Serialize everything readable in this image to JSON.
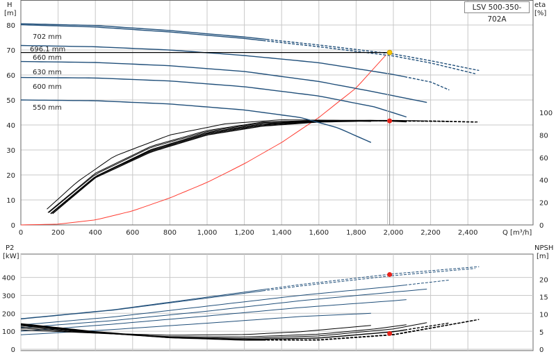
{
  "model_label": "LSV 500-350-702A",
  "colors": {
    "head_curve": "#1f4e79",
    "efficiency_curve": "#000000",
    "system_curve": "#ff3b30",
    "duty_point_head": "#f5c400",
    "duty_point": "#e8231a",
    "grid": "#c8c8c8",
    "vertical_marker": "#8a8a8a"
  },
  "chart_data": [
    {
      "type": "line",
      "title": "",
      "xlabel": "Q [m³/h]",
      "x_tick_labels": [
        "0",
        "200",
        "400",
        "600",
        "800",
        "1,000",
        "1,200",
        "1,400",
        "1,600",
        "1,800",
        "2,000",
        "2,200",
        "2,400"
      ],
      "x_ticks": [
        0,
        200,
        400,
        600,
        800,
        1000,
        1200,
        1400,
        1600,
        1800,
        2000,
        2200,
        2400
      ],
      "xlim": [
        0,
        2750
      ],
      "ylabel_left": [
        "H",
        "[m]"
      ],
      "ylim_left": [
        0,
        90
      ],
      "y_ticks_left": [
        0,
        10,
        20,
        30,
        40,
        50,
        60,
        70,
        80
      ],
      "ylabel_right": [
        "eta",
        "[%]"
      ],
      "ylim_right": [
        0,
        200
      ],
      "y_ticks_right": [
        0,
        20,
        40,
        60,
        80,
        100
      ],
      "grid": true,
      "head_curves": [
        {
          "name": "702 mm",
          "points": [
            [
              0,
              80.5
            ],
            [
              400,
              79.8
            ],
            [
              800,
              77.8
            ],
            [
              1200,
              75.2
            ],
            [
              1600,
              72
            ],
            [
              2000,
              68.4
            ],
            [
              2200,
              65.7
            ],
            [
              2460,
              61.8
            ]
          ],
          "solid_until": 1320
        },
        {
          "name": "696.1 mm",
          "points": [
            [
              0,
              80.1
            ],
            [
              400,
              79.2
            ],
            [
              800,
              77.2
            ],
            [
              1200,
              74.6
            ],
            [
              1600,
              71.3
            ],
            [
              2000,
              67.6
            ],
            [
              2200,
              64.8
            ],
            [
              2440,
              60.5
            ]
          ],
          "solid_until": 1300
        },
        {
          "name": "660 mm",
          "points": [
            [
              0,
              71.8
            ],
            [
              400,
              71.3
            ],
            [
              800,
              70
            ],
            [
              1200,
              67.8
            ],
            [
              1600,
              64.9
            ],
            [
              2000,
              60.2
            ],
            [
              2200,
              57.2
            ],
            [
              2300,
              54
            ]
          ],
          "solid_until": 2060
        },
        {
          "name": "630 mm",
          "points": [
            [
              0,
              69
            ],
            [
              1000,
              69
            ],
            [
              1600,
              69
            ],
            [
              1980,
              69
            ]
          ],
          "solid_until": 1980
        },
        {
          "name": "630 mm curve",
          "points": [
            [
              0,
              65.4
            ],
            [
              400,
              65
            ],
            [
              800,
              63.7
            ],
            [
              1200,
              61.4
            ],
            [
              1600,
              57.4
            ],
            [
              1900,
              53.2
            ],
            [
              2180,
              49
            ]
          ],
          "solid_until": 2180
        },
        {
          "name": "600 mm",
          "points": [
            [
              0,
              59
            ],
            [
              400,
              58.8
            ],
            [
              800,
              57.6
            ],
            [
              1200,
              55.3
            ],
            [
              1600,
              51.6
            ],
            [
              1900,
              47.2
            ],
            [
              2070,
              43.2
            ]
          ],
          "solid_until": 2070
        },
        {
          "name": "550 mm",
          "points": [
            [
              0,
              50
            ],
            [
              400,
              49.7
            ],
            [
              800,
              48.4
            ],
            [
              1200,
              46
            ],
            [
              1500,
              43
            ],
            [
              1700,
              38.9
            ],
            [
              1880,
              33
            ]
          ],
          "solid_until": 1880
        }
      ],
      "efficiency_curves": [
        {
          "name": "702 mm",
          "points": [
            [
              170,
              10
            ],
            [
              400,
              42
            ],
            [
              700,
              65
            ],
            [
              1000,
              80
            ],
            [
              1300,
              88
            ],
            [
              1600,
              91.5
            ],
            [
              1900,
              92.5
            ],
            [
              2200,
              92.5
            ],
            [
              2460,
              91.5
            ]
          ],
          "solid_until": 1900
        },
        {
          "name": "696.1 mm",
          "points": [
            [
              160,
              10
            ],
            [
              400,
              43
            ],
            [
              700,
              66
            ],
            [
              1000,
              81
            ],
            [
              1300,
              89
            ],
            [
              1600,
              92
            ],
            [
              1900,
              92.7
            ],
            [
              2200,
              92.3
            ],
            [
              2440,
              91.4
            ]
          ],
          "solid_until": 1900
        },
        {
          "name": "660 mm",
          "points": [
            [
              160,
              10
            ],
            [
              400,
              43
            ],
            [
              700,
              67
            ],
            [
              1000,
              82
            ],
            [
              1300,
              90
            ],
            [
              1600,
              92.5
            ],
            [
              1900,
              92.5
            ],
            [
              2300,
              92
            ]
          ],
          "solid_until": 2060
        },
        {
          "name": "630 mm",
          "points": [
            [
              150,
              11
            ],
            [
              400,
              45
            ],
            [
              700,
              69
            ],
            [
              1000,
              83
            ],
            [
              1300,
              91
            ],
            [
              1600,
              92.8
            ],
            [
              2000,
              93
            ],
            [
              2180,
              92.5
            ]
          ],
          "solid_until": 2180
        },
        {
          "name": "600 mm",
          "points": [
            [
              145,
              11
            ],
            [
              400,
              46
            ],
            [
              700,
              70
            ],
            [
              1000,
              84
            ],
            [
              1300,
              91.5
            ],
            [
              1600,
              93
            ],
            [
              1900,
              93
            ],
            [
              2070,
              91.5
            ]
          ],
          "solid_until": 2070
        },
        {
          "name": "550 mm",
          "points": [
            [
              140,
              14
            ],
            [
              300,
              38
            ],
            [
              500,
              61
            ],
            [
              800,
              80
            ],
            [
              1100,
              90
            ],
            [
              1400,
              93.5
            ],
            [
              1700,
              93
            ],
            [
              1880,
              92
            ]
          ],
          "solid_until": 1880
        }
      ],
      "system_curve": {
        "points": [
          [
            0,
            0
          ],
          [
            200,
            0.3
          ],
          [
            400,
            2
          ],
          [
            600,
            5.6
          ],
          [
            800,
            10.8
          ],
          [
            1000,
            17
          ],
          [
            1200,
            24.5
          ],
          [
            1400,
            33
          ],
          [
            1600,
            43
          ],
          [
            1800,
            54.8
          ],
          [
            1960,
            68
          ]
        ]
      },
      "duty_point": {
        "x": 1980,
        "head": 69,
        "efficiency": 92.5
      }
    },
    {
      "type": "line",
      "title": "",
      "xlabel": "",
      "ylabel_left": [
        "P2",
        "[kW]"
      ],
      "ylim_left": [
        0,
        500
      ],
      "y_ticks_left": [
        0,
        100,
        200,
        300,
        400
      ],
      "ylabel_right": [
        "NPSH",
        "[m]"
      ],
      "ylim_right": [
        0,
        25
      ],
      "y_ticks_right": [
        0,
        5,
        10,
        15,
        20
      ],
      "xlim": [
        0,
        2750
      ],
      "grid": true,
      "power_curves": [
        {
          "name": "702 mm",
          "points": [
            [
              0,
              170
            ],
            [
              500,
              220
            ],
            [
              1000,
              290
            ],
            [
              1500,
              360
            ],
            [
              2000,
              420
            ],
            [
              2460,
              460
            ]
          ],
          "solid_until": 1320
        },
        {
          "name": "696.1 mm",
          "points": [
            [
              0,
              168
            ],
            [
              500,
              218
            ],
            [
              1000,
              285
            ],
            [
              1500,
              352
            ],
            [
              2000,
              410
            ],
            [
              2440,
              450
            ]
          ],
          "solid_until": 1300
        },
        {
          "name": "660 mm",
          "points": [
            [
              0,
              135
            ],
            [
              500,
              180
            ],
            [
              1000,
              240
            ],
            [
              1500,
              300
            ],
            [
              2000,
              350
            ],
            [
              2300,
              385
            ]
          ],
          "solid_until": 2060
        },
        {
          "name": "630 mm",
          "points": [
            [
              0,
              120
            ],
            [
              500,
              160
            ],
            [
              1000,
              212
            ],
            [
              1500,
              270
            ],
            [
              2000,
              318
            ],
            [
              2180,
              335
            ]
          ],
          "solid_until": 2180
        },
        {
          "name": "600 mm",
          "points": [
            [
              0,
              100
            ],
            [
              500,
              140
            ],
            [
              1000,
              185
            ],
            [
              1500,
              232
            ],
            [
              2000,
              270
            ],
            [
              2070,
              276
            ]
          ],
          "solid_until": 2070
        },
        {
          "name": "550 mm",
          "points": [
            [
              0,
              80
            ],
            [
              500,
              110
            ],
            [
              1000,
              145
            ],
            [
              1500,
              182
            ],
            [
              1880,
              200
            ]
          ],
          "solid_until": 1880
        }
      ],
      "npsh_curves": [
        {
          "name": "702 mm",
          "points": [
            [
              0,
              7.3
            ],
            [
              400,
              5
            ],
            [
              800,
              3.4
            ],
            [
              1200,
              2.7
            ],
            [
              1600,
              2.7
            ],
            [
              2000,
              4.2
            ],
            [
              2460,
              8.5
            ]
          ],
          "solid_until": 1320
        },
        {
          "name": "696.1 mm",
          "points": [
            [
              0,
              7.1
            ],
            [
              400,
              4.9
            ],
            [
              800,
              3.3
            ],
            [
              1200,
              2.6
            ],
            [
              1600,
              2.6
            ],
            [
              2000,
              4.1
            ],
            [
              2440,
              8.3
            ]
          ],
          "solid_until": 1300
        },
        {
          "name": "660 mm",
          "points": [
            [
              0,
              6.8
            ],
            [
              400,
              4.8
            ],
            [
              800,
              3.3
            ],
            [
              1200,
              2.8
            ],
            [
              1600,
              3.2
            ],
            [
              2000,
              5
            ],
            [
              2300,
              7.5
            ]
          ],
          "solid_until": 2060
        },
        {
          "name": "630 mm",
          "points": [
            [
              0,
              6.4
            ],
            [
              400,
              4.7
            ],
            [
              800,
              3.4
            ],
            [
              1200,
              3.1
            ],
            [
              1600,
              3.8
            ],
            [
              2000,
              5.8
            ],
            [
              2180,
              7.6
            ]
          ],
          "solid_until": 2180
        },
        {
          "name": "600 mm",
          "points": [
            [
              0,
              6
            ],
            [
              400,
              4.6
            ],
            [
              800,
              3.6
            ],
            [
              1200,
              3.5
            ],
            [
              1600,
              4.3
            ],
            [
              1900,
              5.8
            ],
            [
              2070,
              7
            ]
          ],
          "solid_until": 2070
        },
        {
          "name": "550 mm",
          "points": [
            [
              0,
              5.5
            ],
            [
              400,
              4.6
            ],
            [
              800,
              4
            ],
            [
              1200,
              4.2
            ],
            [
              1500,
              5
            ],
            [
              1880,
              6.8
            ]
          ],
          "solid_until": 1880
        }
      ],
      "duty_point": {
        "x": 1980,
        "power": 416,
        "npsh": 4.5
      }
    }
  ]
}
